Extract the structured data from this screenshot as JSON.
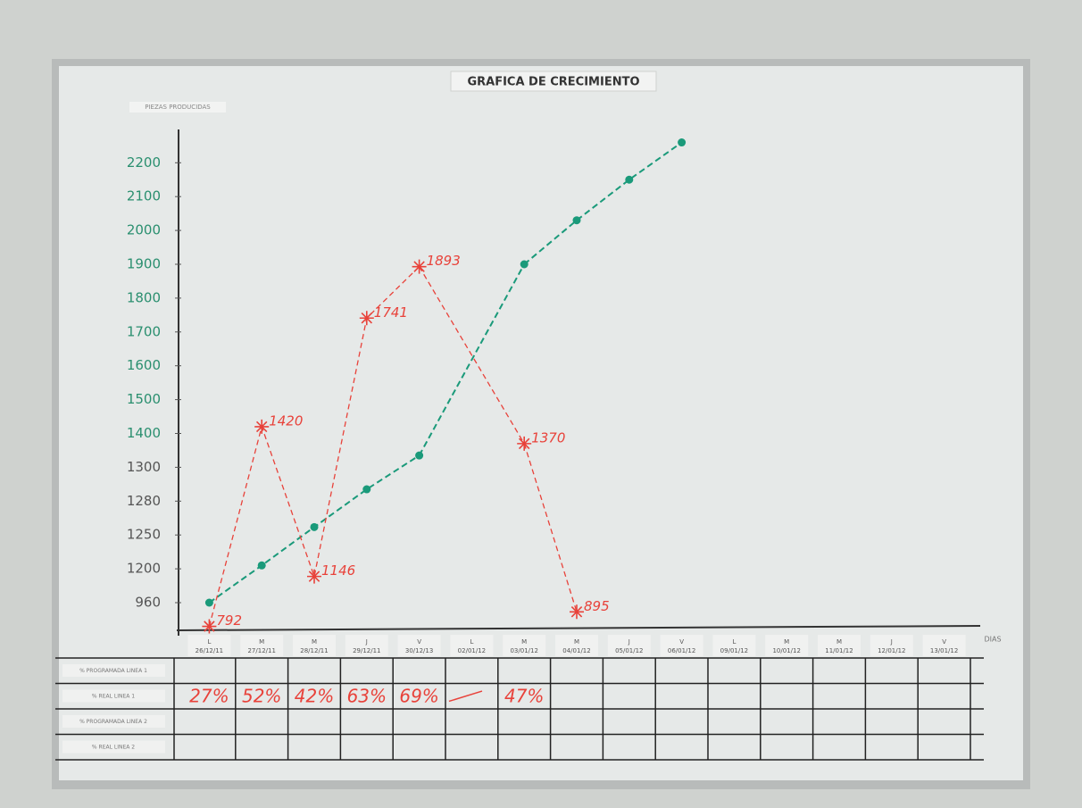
{
  "chart_data": {
    "type": "line",
    "title": "GRAFICA DE CRECIMIENTO",
    "y_label": "PIEZAS PRODUCIDAS",
    "x_label": "DIAS",
    "day_letters": [
      "L",
      "M",
      "M",
      "J",
      "V",
      "L",
      "M",
      "M",
      "J",
      "V",
      "L",
      "M",
      "M",
      "J",
      "V"
    ],
    "categories": [
      "26/12/11",
      "27/12/11",
      "28/12/11",
      "29/12/11",
      "30/12/13",
      "02/01/12",
      "03/01/12",
      "04/01/12",
      "05/01/12",
      "06/01/12",
      "09/01/12",
      "10/01/12",
      "11/01/12",
      "12/01/12",
      "13/01/12"
    ],
    "yticks": [
      960,
      1200,
      1250,
      1280,
      1300,
      1400,
      1500,
      1600,
      1700,
      1800,
      1900,
      2000,
      2100,
      2200
    ],
    "series": [
      {
        "color": "#1a9a7a",
        "marker": "dot",
        "values": [
          960,
          1205,
          1257,
          1287,
          1335,
          null,
          1900,
          2030,
          2150,
          2260,
          null,
          null,
          null,
          null,
          null
        ]
      },
      {
        "color": "#e8423a",
        "marker": "star",
        "values": [
          792,
          1420,
          1146,
          1741,
          1893,
          null,
          1370,
          895,
          null,
          null,
          null,
          null,
          null,
          null,
          null
        ]
      }
    ],
    "table": {
      "row_labels": [
        "% PROGRAMADA LINEA 1",
        "% REAL LINEA 1",
        "% PROGRAMADA LINEA 2",
        "% REAL LINEA 2"
      ],
      "rows": [
        [],
        [
          "27%",
          "52%",
          "42%",
          "63%",
          "69%",
          null,
          "47%"
        ],
        [],
        []
      ]
    }
  }
}
